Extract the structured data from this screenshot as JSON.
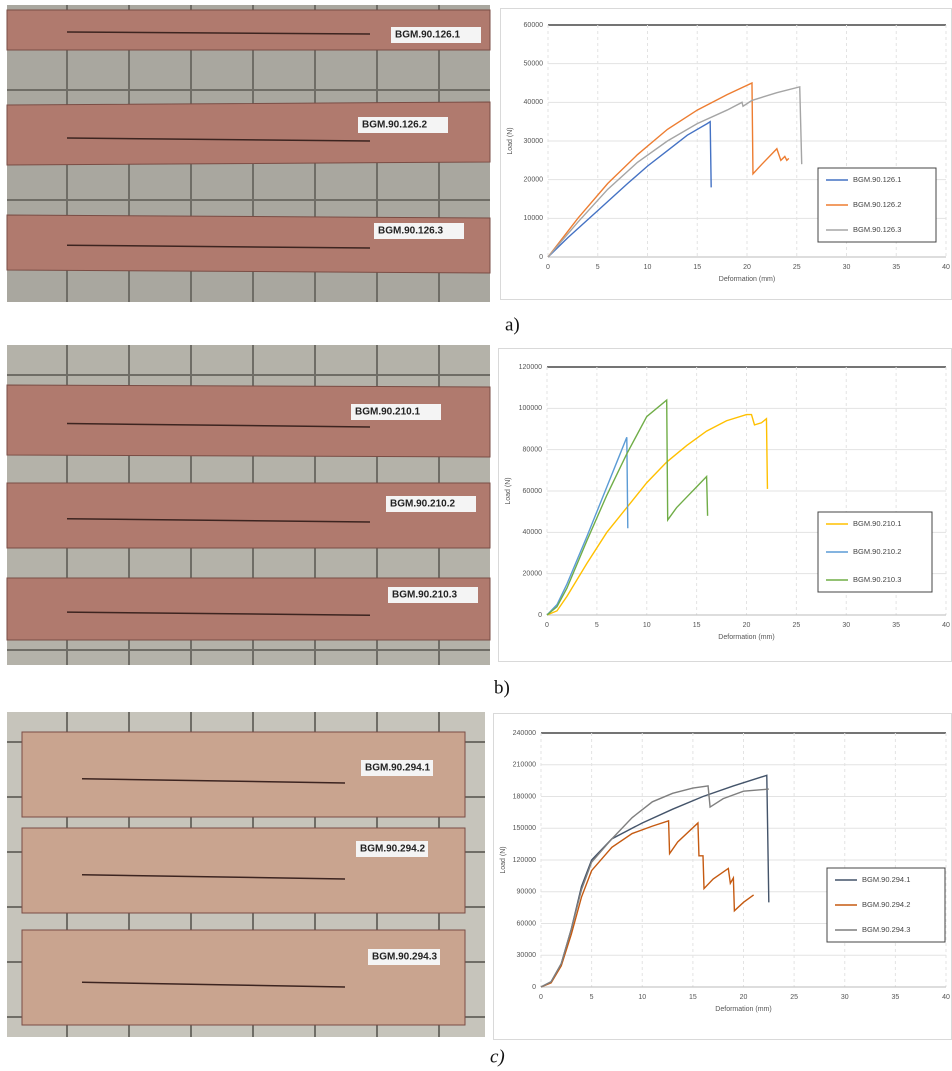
{
  "chart_data": [
    {
      "type": "line",
      "xlabel": "Deformation (mm)",
      "ylabel": "Load (N)",
      "xlim": [
        0,
        40
      ],
      "ylim": [
        0,
        60000
      ],
      "xticks": [
        0,
        5,
        10,
        15,
        20,
        25,
        30,
        35,
        40
      ],
      "yticks": [
        0,
        10000,
        20000,
        30000,
        40000,
        50000,
        60000
      ],
      "grid": true,
      "legend": "right",
      "series": [
        {
          "name": "BGM.90.126.1",
          "color": "#4472c4",
          "x": [
            0,
            2,
            5,
            8,
            10,
            12,
            14,
            16,
            16.3,
            16.4
          ],
          "values": [
            0,
            5000,
            12000,
            19000,
            23500,
            27500,
            31500,
            34500,
            35000,
            18000
          ]
        },
        {
          "name": "BGM.90.126.2",
          "color": "#ed7d31",
          "x": [
            0,
            3,
            6,
            9,
            12,
            15,
            18,
            20.5,
            20.6,
            21.5,
            23,
            23.4,
            23.8,
            24,
            24.2
          ],
          "values": [
            0,
            10000,
            19000,
            26500,
            33000,
            38000,
            42000,
            45000,
            21500,
            24000,
            28000,
            25000,
            26000,
            25000,
            25500
          ]
        },
        {
          "name": "BGM.90.126.3",
          "color": "#a5a5a5",
          "x": [
            0,
            3,
            6,
            9,
            12,
            15,
            18,
            19.5,
            19.6,
            20.5,
            23,
            25.3,
            25.5
          ],
          "values": [
            0,
            9000,
            17500,
            24500,
            30000,
            34500,
            38000,
            40000,
            39000,
            40500,
            42500,
            44000,
            24000
          ]
        }
      ]
    },
    {
      "type": "line",
      "xlabel": "Deformation (mm)",
      "ylabel": "Load (N)",
      "xlim": [
        0,
        40
      ],
      "ylim": [
        0,
        120000
      ],
      "xticks": [
        0,
        5,
        10,
        15,
        20,
        25,
        30,
        35,
        40
      ],
      "yticks": [
        0,
        20000,
        40000,
        60000,
        80000,
        100000,
        120000
      ],
      "grid": true,
      "legend": "right",
      "series": [
        {
          "name": "BGM.90.210.1",
          "color": "#ffc000",
          "x": [
            0,
            1,
            2,
            4,
            6,
            8,
            10,
            12,
            14,
            16,
            18,
            20,
            20.5,
            20.8,
            21.5,
            22,
            22.1
          ],
          "values": [
            0,
            2000,
            9000,
            25000,
            40000,
            52000,
            64000,
            74000,
            82000,
            89000,
            94000,
            97000,
            97000,
            92000,
            93000,
            95000,
            61000
          ]
        },
        {
          "name": "BGM.90.210.2",
          "color": "#5b9bd5",
          "x": [
            0,
            1,
            2,
            4,
            6,
            7,
            8,
            8.1
          ],
          "values": [
            0,
            5000,
            15000,
            38000,
            62000,
            74000,
            86000,
            42000
          ]
        },
        {
          "name": "BGM.90.210.3",
          "color": "#70ad47",
          "x": [
            0,
            1,
            2,
            4,
            6,
            8,
            10,
            12,
            12.1,
            13,
            14,
            15,
            16,
            16.1
          ],
          "values": [
            0,
            4000,
            13000,
            36000,
            58000,
            78000,
            96000,
            104000,
            46000,
            52000,
            57000,
            62000,
            67000,
            48000
          ]
        }
      ]
    },
    {
      "type": "line",
      "xlabel": "Deformation (mm)",
      "ylabel": "Load (N)",
      "xlim": [
        0,
        40
      ],
      "ylim": [
        0,
        240000
      ],
      "xticks": [
        0,
        5,
        10,
        15,
        20,
        25,
        30,
        35,
        40
      ],
      "yticks": [
        0,
        30000,
        60000,
        90000,
        120000,
        150000,
        180000,
        210000,
        240000
      ],
      "grid": true,
      "legend": "right",
      "series": [
        {
          "name": "BGM.90.294.1",
          "color": "#44546a",
          "x": [
            0,
            1,
            2,
            3,
            4,
            5,
            7,
            10,
            13,
            16,
            19,
            22.3,
            22.5
          ],
          "values": [
            0,
            5000,
            22000,
            55000,
            95000,
            120000,
            140000,
            155000,
            168000,
            180000,
            190000,
            200000,
            80000
          ]
        },
        {
          "name": "BGM.90.294.2",
          "color": "#c55a11",
          "x": [
            0,
            1,
            2,
            3,
            4,
            5,
            7,
            9,
            11,
            12.6,
            12.7,
            13.5,
            15.5,
            15.6,
            16,
            16.1,
            17,
            18.5,
            18.7,
            19,
            19.1,
            20,
            21
          ],
          "values": [
            0,
            4000,
            20000,
            50000,
            85000,
            110000,
            132000,
            145000,
            152000,
            157000,
            126000,
            137000,
            155000,
            124000,
            124000,
            93000,
            102000,
            112000,
            98000,
            103000,
            72000,
            80000,
            87000
          ]
        },
        {
          "name": "BGM.90.294.3",
          "color": "#7f7f7f",
          "x": [
            0,
            1,
            2,
            3,
            4,
            5,
            7,
            9,
            11,
            13,
            15,
            16.5,
            16.7,
            18,
            20,
            22.5
          ],
          "values": [
            0,
            5000,
            22000,
            55000,
            92000,
            118000,
            140000,
            160000,
            175000,
            183000,
            188000,
            190000,
            170000,
            178000,
            185000,
            187000
          ]
        }
      ]
    }
  ],
  "panels": [
    {
      "label": "a)",
      "photo_labels": [
        "BGM.90.126.1",
        "BGM.90.126.2",
        "BGM.90.126.3"
      ]
    },
    {
      "label": "b)",
      "photo_labels": [
        "BGM.90.210.1",
        "BGM.90.210.2",
        "BGM.90.210.3"
      ]
    },
    {
      "label": "c)",
      "photo_labels": [
        "BGM.90.294.1",
        "BGM.90.294.2",
        "BGM.90.294.3"
      ]
    }
  ]
}
